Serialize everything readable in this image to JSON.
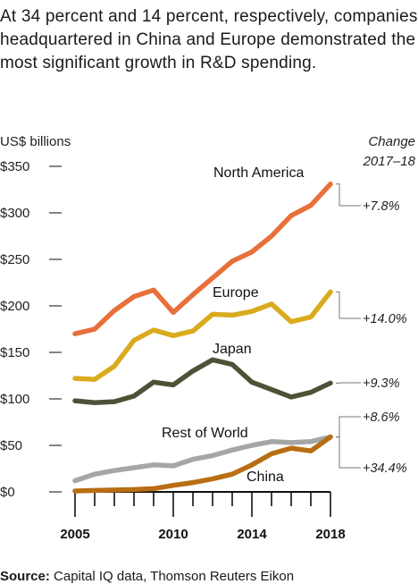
{
  "intro": "At 34 percent and 14 percent, respectively, companies headquartered in China and Europe demonstrated the most significant growth in R&D spending.",
  "source_label": "Source:",
  "source_text": "Capital IQ data, Thomson Reuters Eikon",
  "chart_data": {
    "type": "line",
    "unit_label": "US$ billions",
    "change_header": [
      "Change",
      "2017–18"
    ],
    "y_ticks": [
      "$0",
      "$50",
      "$100",
      "$150",
      "$200",
      "$250",
      "$300",
      "$350"
    ],
    "y_tick_values": [
      0,
      50,
      100,
      150,
      200,
      250,
      300,
      350
    ],
    "ylim": [
      0,
      350
    ],
    "xlim": [
      2005,
      2018
    ],
    "x_tick_labels": [
      "2005",
      "2010",
      "2014",
      "2018"
    ],
    "x_tick_label_values": [
      2005,
      2010,
      2014,
      2018
    ],
    "x": [
      2005,
      2006,
      2007,
      2008,
      2009,
      2010,
      2011,
      2012,
      2013,
      2014,
      2015,
      2016,
      2017,
      2018
    ],
    "grid": false,
    "series": [
      {
        "name": "North America",
        "color": "#e8703a",
        "change": "+7.8%",
        "values": [
          170,
          175,
          195,
          210,
          217,
          193,
          212,
          230,
          248,
          258,
          275,
          297,
          308,
          331
        ]
      },
      {
        "name": "Europe",
        "color": "#d9ab1e",
        "change": "+14.0%",
        "values": [
          122,
          121,
          135,
          163,
          174,
          168,
          173,
          191,
          190,
          194,
          202,
          183,
          188,
          215
        ]
      },
      {
        "name": "Japan",
        "color": "#4f5137",
        "change": "+9.3%",
        "values": [
          98,
          96,
          97,
          103,
          118,
          115,
          130,
          142,
          137,
          118,
          110,
          102,
          107,
          117
        ]
      },
      {
        "name": "Rest of World",
        "color": "#a6a6a6",
        "change": "+8.6%",
        "values": [
          12,
          19,
          23,
          26,
          29,
          28,
          35,
          39,
          45,
          50,
          54,
          53,
          54,
          59
        ]
      },
      {
        "name": "China",
        "color": "#b86e12",
        "change": "+34.4%",
        "values": [
          1,
          1.5,
          2,
          2.5,
          3.5,
          7,
          10,
          14,
          19,
          29,
          41,
          47,
          44,
          59
        ]
      }
    ]
  }
}
